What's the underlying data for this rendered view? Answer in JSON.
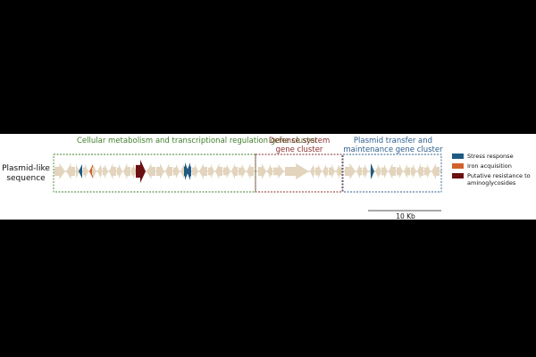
{
  "row_label": "Plasmid-like sequence",
  "clusters": [
    {
      "title": "Cellular metabolism and transcriptional regulation gene cluster",
      "color": "#3f7f2a"
    },
    {
      "title": "Defense system gene cluster",
      "color": "#8a2e2e"
    },
    {
      "title": "Plasmid transfer and maintenance gene cluster",
      "color": "#2d5d8c"
    }
  ],
  "legend": [
    {
      "label": "Stress response",
      "color": "#1f5a82"
    },
    {
      "label": "Iron acquisition",
      "color": "#d2622a"
    },
    {
      "label": "Putative resistance to aminoglycosides",
      "color": "#6b0f10"
    }
  ],
  "scale_bar": {
    "label": "10 Kb"
  },
  "colors": {
    "default_gene": "#e3d5bd",
    "background": "#000000",
    "panel": "#ffffff"
  }
}
